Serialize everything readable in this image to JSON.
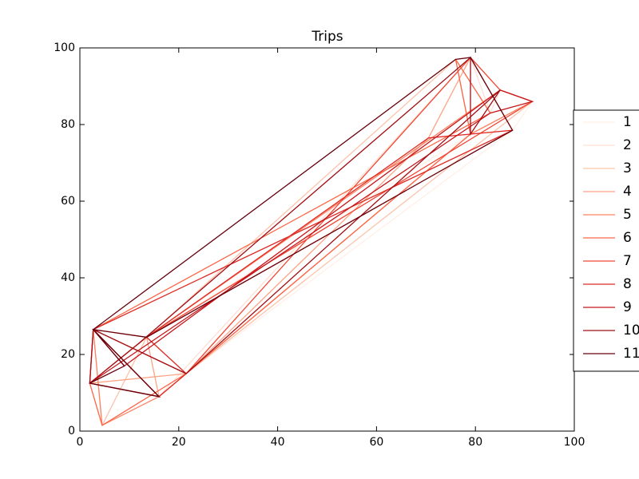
{
  "chart_data": {
    "type": "line",
    "title": "Trips",
    "xlim": [
      0,
      100
    ],
    "ylim": [
      0,
      100
    ],
    "xticks": [
      0,
      20,
      40,
      60,
      80,
      100
    ],
    "yticks": [
      0,
      20,
      40,
      60,
      80,
      100
    ],
    "legend": "right",
    "series": [
      {
        "name": "1",
        "color": "#fff0e8",
        "x": [
          2,
          13.5,
          79,
          91.5,
          87.5,
          21.5,
          4.5,
          2
        ],
        "values": [
          12.5,
          24.5,
          77.5,
          86,
          78.5,
          15,
          1.5,
          12.5
        ]
      },
      {
        "name": "2",
        "color": "#fee0d2",
        "x": [
          2.7,
          16,
          79,
          83,
          85,
          13.5,
          2,
          2.7
        ],
        "values": [
          26.5,
          9,
          97.5,
          83,
          89,
          24.5,
          12.5,
          26.5
        ]
      },
      {
        "name": "3",
        "color": "#fcc3ab",
        "x": [
          4.5,
          13.5,
          76,
          79,
          91.5,
          21.5,
          2.7,
          4.5
        ],
        "values": [
          1.5,
          24.5,
          97,
          77.5,
          86,
          15,
          26.5,
          1.5
        ]
      },
      {
        "name": "4",
        "color": "#fca486",
        "x": [
          2,
          21.5,
          70.5,
          79,
          87.5,
          13.5,
          16,
          2
        ],
        "values": [
          12.5,
          15,
          76.5,
          97.5,
          78.5,
          24.5,
          9,
          12.5
        ]
      },
      {
        "name": "5",
        "color": "#fc8565",
        "x": [
          2.7,
          13.5,
          85,
          91.5,
          79,
          16,
          4.5,
          2.7
        ],
        "values": [
          26.5,
          24.5,
          89,
          86,
          77.5,
          9,
          1.5,
          26.5
        ]
      },
      {
        "name": "6",
        "color": "#fb6747",
        "x": [
          4.5,
          21.5,
          79,
          76,
          83,
          2.7,
          2,
          4.5
        ],
        "values": [
          1.5,
          15,
          77.5,
          97,
          83,
          26.5,
          12.5,
          1.5
        ]
      },
      {
        "name": "7",
        "color": "#f24734",
        "x": [
          2,
          13.5,
          91.5,
          85,
          79,
          21.5,
          2.7,
          2
        ],
        "values": [
          12.5,
          24.5,
          86,
          89,
          97.5,
          15,
          26.5,
          12.5
        ]
      },
      {
        "name": "8",
        "color": "#de2b25",
        "x": [
          16,
          2.7,
          87.5,
          79,
          70.5,
          13.5,
          21.5,
          16
        ],
        "values": [
          9,
          26.5,
          78.5,
          77.5,
          76.5,
          24.5,
          15,
          9
        ]
      },
      {
        "name": "9",
        "color": "#c5171c",
        "x": [
          2.7,
          9,
          85,
          91.5,
          83,
          2,
          16,
          2.7
        ],
        "values": [
          26.5,
          17,
          89,
          86,
          83,
          12.5,
          9,
          26.5
        ]
      },
      {
        "name": "10",
        "color": "#a10e15",
        "x": [
          2,
          12,
          79,
          79,
          85,
          21.5,
          2.7,
          2
        ],
        "values": [
          12.5,
          23,
          97.5,
          77.5,
          89,
          15,
          26.5,
          12.5
        ]
      },
      {
        "name": "11",
        "color": "#67000d",
        "x": [
          2,
          16,
          2.7,
          76,
          79,
          87.5,
          13.5,
          2.7,
          9,
          2
        ],
        "values": [
          12.5,
          9,
          26.5,
          97,
          97.5,
          78.5,
          24.5,
          26.5,
          17,
          12.5
        ]
      }
    ]
  }
}
